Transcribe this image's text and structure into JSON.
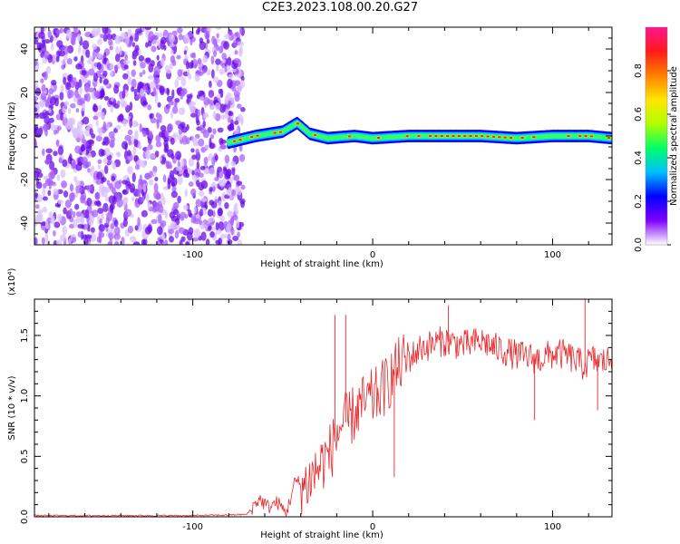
{
  "title": "C2E3.2023.108.00.20.G27",
  "chart_data": [
    {
      "type": "heatmap",
      "title": "",
      "xlabel": "Height of straight line (km)",
      "ylabel": "Frequency (Hz)",
      "xlim": [
        -188,
        133
      ],
      "ylim": [
        -50,
        50
      ],
      "xticks": [
        -100,
        0,
        100
      ],
      "yticks": [
        -40,
        -20,
        0,
        20,
        40
      ],
      "colorbar": {
        "label": "Normalized spectral amplitude",
        "range": [
          0,
          1
        ],
        "ticks": [
          "0.0",
          "0.2",
          "0.4",
          "0.6",
          "0.8"
        ],
        "colors": [
          "#ffffff",
          "#7f00ff",
          "#0000ff",
          "#00bfff",
          "#00ff66",
          "#b0ff00",
          "#ffe600",
          "#ff8000",
          "#ff1a1a",
          "#ff1493"
        ]
      },
      "noise_region": {
        "x_from": -188,
        "x_to": -72,
        "dominant_color": "#7a1cf0"
      },
      "ridge": {
        "description_points": [
          {
            "x": -80,
            "freq": -3
          },
          {
            "x": -65,
            "freq": 0
          },
          {
            "x": -50,
            "freq": 2
          },
          {
            "x": -42,
            "freq": 6
          },
          {
            "x": -35,
            "freq": 1
          },
          {
            "x": -25,
            "freq": -1
          },
          {
            "x": -10,
            "freq": 0
          },
          {
            "x": 0,
            "freq": -1
          },
          {
            "x": 20,
            "freq": 0
          },
          {
            "x": 40,
            "freq": 0
          },
          {
            "x": 60,
            "freq": 0
          },
          {
            "x": 80,
            "freq": -1
          },
          {
            "x": 100,
            "freq": 0
          },
          {
            "x": 120,
            "freq": 0
          },
          {
            "x": 133,
            "freq": -1
          }
        ]
      }
    },
    {
      "type": "line",
      "title": "",
      "xlabel": "Height of straight line (km)",
      "ylabel": "SNR (10 * v/v)",
      "y_multiplier": "(x10⁴)",
      "xlim": [
        -188,
        133
      ],
      "ylim": [
        0,
        1.8
      ],
      "xticks": [
        -100,
        0,
        100
      ],
      "yticks": [
        "0.0",
        "0.5",
        "1.0",
        "1.5"
      ],
      "series_color": "#e8282b",
      "series": [
        {
          "x": [
            -188,
            -160,
            -130,
            -100,
            -80,
            -70,
            -63,
            -58,
            -53,
            -48,
            -43,
            -38,
            -33,
            -28,
            -23,
            -18,
            -13,
            -8,
            -3,
            2,
            7,
            12,
            17,
            22,
            27,
            32,
            37,
            42,
            47,
            52,
            57,
            62,
            67,
            72,
            77,
            82,
            87,
            92,
            97,
            102,
            107,
            112,
            117,
            122,
            127,
            133
          ],
          "y": [
            0.01,
            0.01,
            0.01,
            0.01,
            0.015,
            0.02,
            0.15,
            0.08,
            0.12,
            0.03,
            0.3,
            0.25,
            0.35,
            0.45,
            0.55,
            0.75,
            0.8,
            0.9,
            0.95,
            1.0,
            1.08,
            1.2,
            1.28,
            1.33,
            1.4,
            1.42,
            1.45,
            1.45,
            1.43,
            1.42,
            1.44,
            1.45,
            1.4,
            1.38,
            1.35,
            1.33,
            1.32,
            1.3,
            1.33,
            1.35,
            1.34,
            1.3,
            1.25,
            1.3,
            1.28,
            1.3
          ]
        }
      ],
      "spikes": [
        {
          "x": -21,
          "y": 1.67
        },
        {
          "x": -15,
          "y": 1.67
        },
        {
          "x": 12,
          "y": 0.33
        },
        {
          "x": 42,
          "y": 1.75
        },
        {
          "x": 90,
          "y": 0.8
        },
        {
          "x": 118,
          "y": 1.8
        },
        {
          "x": 125,
          "y": 0.88
        }
      ]
    }
  ]
}
